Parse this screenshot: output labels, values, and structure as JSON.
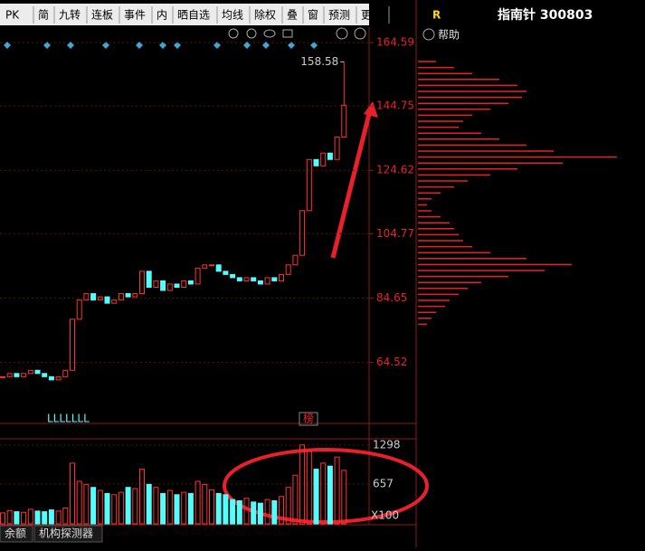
{
  "toolbar": {
    "items": [
      "PK",
      "简",
      "九转",
      "连板",
      "事件",
      "内",
      "晒自选",
      "均线",
      "除权",
      "叠",
      "窗",
      "预测",
      "更多"
    ]
  },
  "side_panel": {
    "badge": "R",
    "title": "指南针 300803",
    "help": "帮助",
    "chip_distribution": [
      20,
      40,
      60,
      90,
      110,
      120,
      115,
      100,
      80,
      60,
      50,
      45,
      70,
      90,
      120,
      150,
      220,
      160,
      110,
      80,
      55,
      40,
      25,
      15,
      10,
      15,
      25,
      35,
      40,
      45,
      50,
      60,
      80,
      120,
      170,
      140,
      100,
      70,
      55,
      45,
      35,
      30,
      20,
      15,
      10
    ]
  },
  "price": {
    "yticks": [
      64.52,
      84.65,
      104.77,
      124.62,
      144.75,
      164.59
    ],
    "ylim": [
      55,
      170
    ],
    "closes": [
      60,
      61,
      60,
      61,
      62,
      61,
      60,
      59,
      60,
      62,
      78,
      84,
      86,
      84,
      85,
      83,
      84,
      86,
      85,
      86,
      93,
      88,
      90,
      87,
      89,
      88,
      90,
      89,
      94,
      95,
      95,
      93,
      92,
      91,
      90,
      91,
      90,
      89,
      91,
      90,
      92,
      95,
      98,
      112,
      128,
      126,
      130,
      128,
      135,
      145
    ],
    "high": 158.58,
    "signal": "LLLLLLL",
    "tag": "榜"
  },
  "volume": {
    "yticks": [
      657,
      1298
    ],
    "ylim": [
      0,
      1400
    ],
    "unit": "X100",
    "values": [
      180,
      220,
      200,
      190,
      240,
      210,
      200,
      230,
      210,
      260,
      1000,
      700,
      650,
      600,
      550,
      500,
      480,
      520,
      600,
      580,
      900,
      650,
      600,
      500,
      550,
      480,
      520,
      500,
      700,
      650,
      560,
      500,
      480,
      400,
      380,
      420,
      360,
      340,
      400,
      380,
      450,
      600,
      800,
      1298,
      1200,
      900,
      1000,
      950,
      1100,
      880
    ]
  },
  "tabs": [
    "余额",
    "机构探测器"
  ]
}
